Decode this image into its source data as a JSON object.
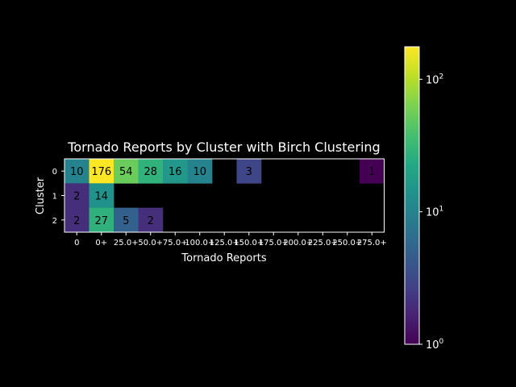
{
  "chart_data": {
    "type": "heatmap",
    "title": "Tornado Reports by Cluster with Birch Clustering",
    "xlabel": "Tornado Reports",
    "ylabel": "Cluster",
    "x_categories": [
      "0",
      "0+",
      "25.0+",
      "50.0+",
      "75.0+",
      "100.0+",
      "125.0+",
      "150.0+",
      "175.0+",
      "200.0+",
      "225.0+",
      "250.0+",
      "275.0+"
    ],
    "y_categories": [
      "0",
      "1",
      "2"
    ],
    "values": [
      [
        10,
        176,
        54,
        28,
        16,
        10,
        null,
        3,
        null,
        null,
        null,
        null,
        1
      ],
      [
        2,
        14,
        null,
        null,
        null,
        null,
        null,
        null,
        null,
        null,
        null,
        null,
        null
      ],
      [
        2,
        27,
        5,
        2,
        null,
        null,
        null,
        null,
        null,
        null,
        null,
        null,
        null
      ]
    ],
    "colorbar": {
      "scale": "log",
      "colormap": "viridis",
      "range": [
        1,
        176
      ],
      "tick_values": [
        1,
        10,
        100
      ],
      "tick_labels": [
        {
          "base": "10",
          "exp": "0"
        },
        {
          "base": "10",
          "exp": "1"
        },
        {
          "base": "10",
          "exp": "2"
        }
      ]
    },
    "background": "#000000",
    "text_color": "#ffffff",
    "annotation_color": "#000000"
  }
}
